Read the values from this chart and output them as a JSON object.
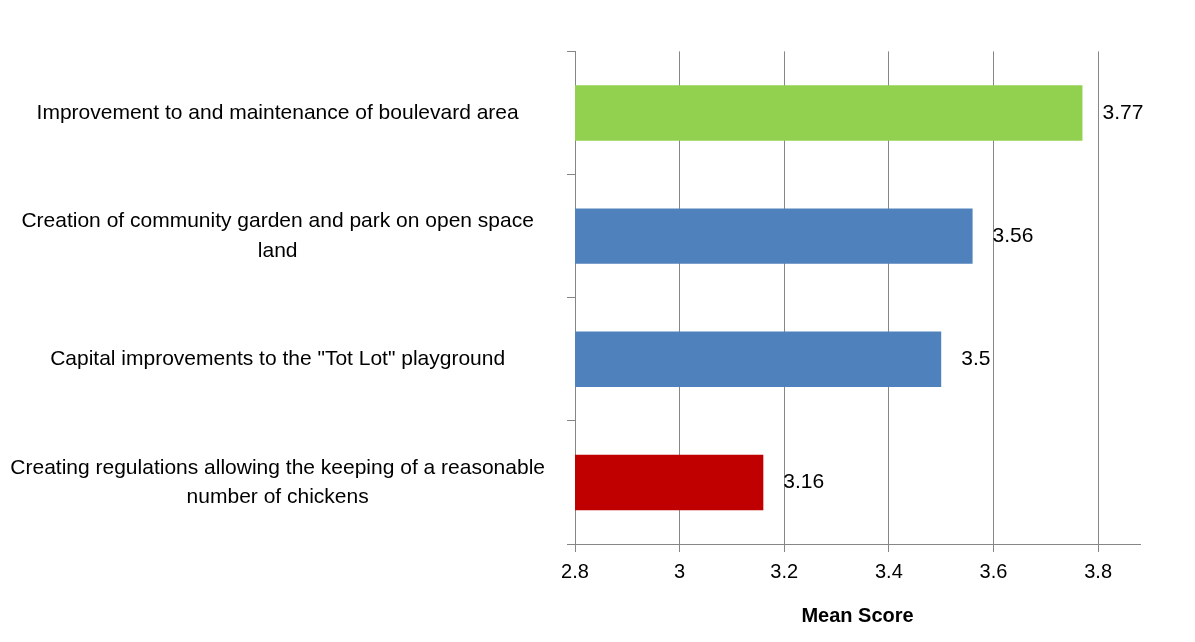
{
  "chart_data": {
    "type": "bar",
    "orientation": "horizontal",
    "xlabel": "Mean Score",
    "categories": [
      "Improvement to and maintenance of boulevard area",
      "Creation of community garden and park on open space land",
      "Capital improvements to the \"Tot Lot\" playground",
      "Creating regulations allowing the keeping of a reasonable number of chickens"
    ],
    "values": [
      3.77,
      3.56,
      3.5,
      3.16
    ],
    "colors": [
      "#92d050",
      "#4f81bd",
      "#4f81bd",
      "#c00000"
    ],
    "xlim": [
      2.8,
      3.88
    ],
    "xticks": [
      2.8,
      3,
      3.2,
      3.4,
      3.6,
      3.8
    ],
    "grid": "x",
    "data_labels": true,
    "legend": false
  }
}
